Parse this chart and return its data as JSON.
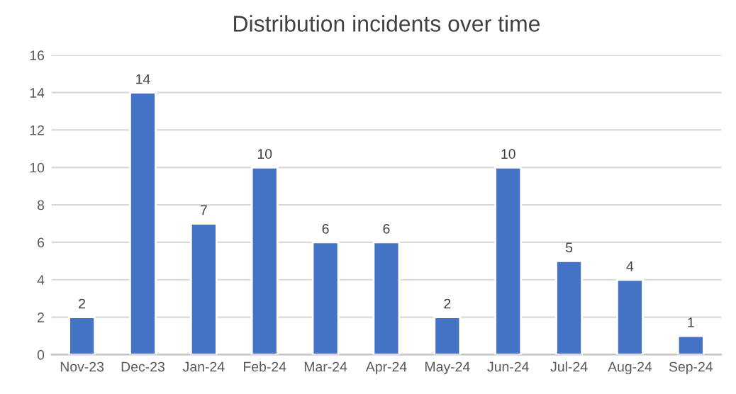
{
  "chart_data": {
    "type": "bar",
    "title": "Distribution incidents over time",
    "categories": [
      "Nov-23",
      "Dec-23",
      "Jan-24",
      "Feb-24",
      "Mar-24",
      "Apr-24",
      "May-24",
      "Jun-24",
      "Jul-24",
      "Aug-24",
      "Sep-24"
    ],
    "values": [
      2,
      14,
      7,
      10,
      6,
      6,
      2,
      10,
      5,
      4,
      1
    ],
    "color": "#4472c4",
    "ylim": [
      0,
      16
    ],
    "yticks": [
      0,
      2,
      4,
      6,
      8,
      10,
      12,
      14,
      16
    ],
    "grid": "y",
    "data_labels": true
  }
}
